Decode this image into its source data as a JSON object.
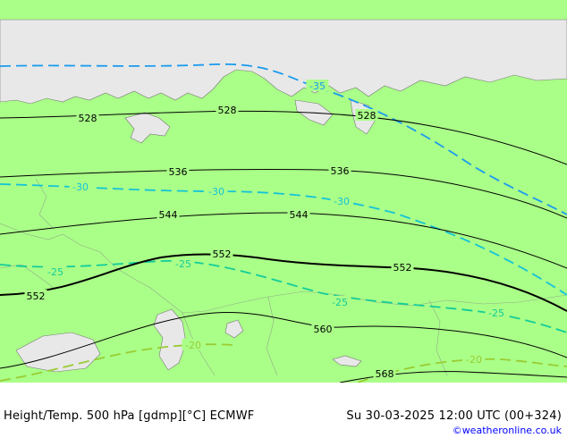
{
  "map": {
    "colors": {
      "land": "#aaff88",
      "sea": "#e8e8e8",
      "height_contour": "#000000",
      "temp_minus35": "#1a9bee",
      "temp_minus30": "#14c3d8",
      "temp_minus25": "#12cc9a",
      "temp_minus20": "#99cc33"
    },
    "height_contours": [
      {
        "value": 528,
        "labels": [
          "528",
          "528",
          "528"
        ]
      },
      {
        "value": 536,
        "labels": [
          "536",
          "536"
        ]
      },
      {
        "value": 544,
        "labels": [
          "544",
          "544"
        ]
      },
      {
        "value": 552,
        "labels": [
          "552",
          "552",
          "552"
        ]
      },
      {
        "value": 560,
        "labels": [
          "560"
        ]
      },
      {
        "value": 568,
        "labels": [
          "568"
        ]
      }
    ],
    "temperature_isotherms": [
      {
        "value": -35,
        "labels": [
          "-35"
        ]
      },
      {
        "value": -30,
        "labels": [
          "-30",
          "-30",
          "-30"
        ]
      },
      {
        "value": -25,
        "labels": [
          "-25",
          "-25",
          "-25",
          "-25"
        ]
      },
      {
        "value": -20,
        "labels": [
          "-20",
          "-20"
        ]
      }
    ]
  },
  "footer": {
    "title": "Height/Temp. 500 hPa [gdmp][°C] ECMWF",
    "valid_time": "Su 30-03-2025 12:00 UTC (00+324)",
    "credit": "©weatheronline.co.uk"
  }
}
